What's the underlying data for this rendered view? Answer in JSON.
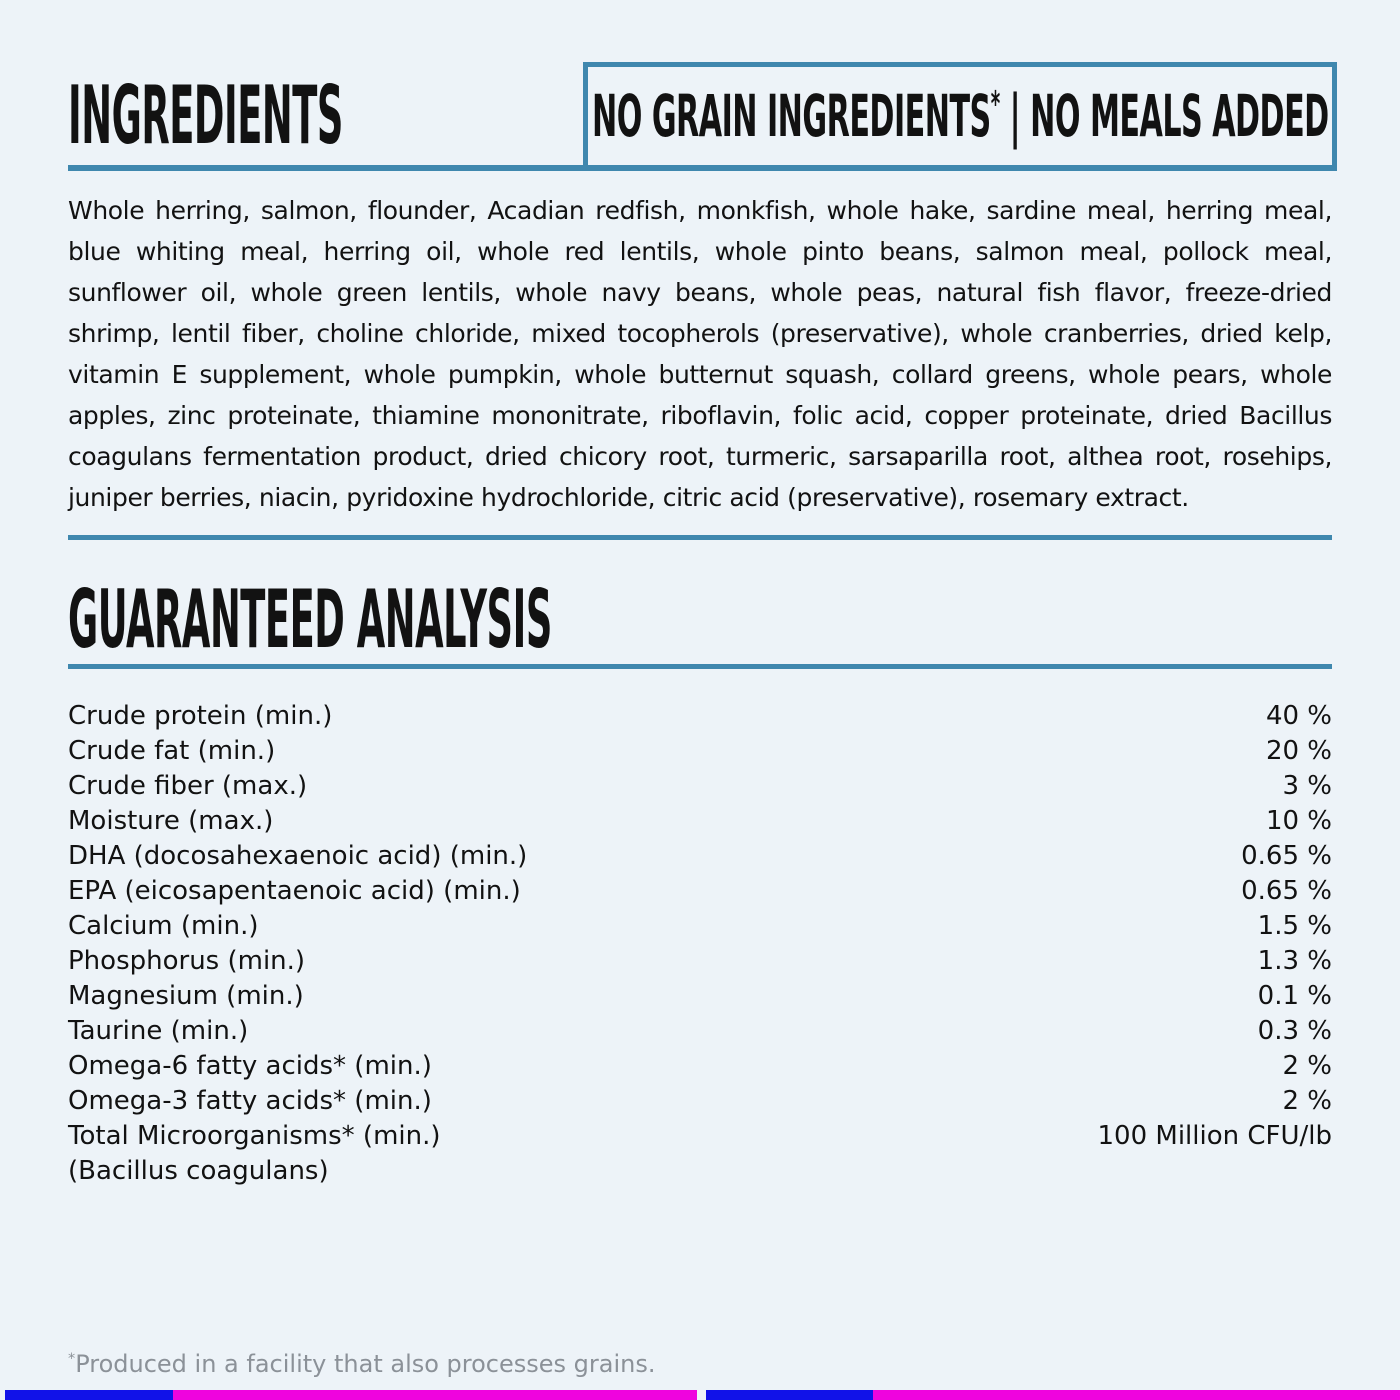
{
  "colors": {
    "background": "#edf3f8",
    "accent": "#3f87ae",
    "text": "#121212",
    "footnote": "#8b9198",
    "bar_blue": "#1112e8",
    "bar_magenta": "#ef04de"
  },
  "ingredients": {
    "heading": "INGREDIENTS",
    "badge": {
      "text_left": "NO GRAIN INGREDIENTS",
      "asterisk": "*",
      "separator": " | ",
      "text_right": "NO MEALS ADDED"
    },
    "text": "Whole herring, salmon, flounder, Acadian redfish, monkfish, whole hake, sardine meal, herring meal, blue whiting meal, herring oil, whole red lentils, whole pinto beans, salmon meal, pollock meal, sunflower oil, whole green lentils, whole navy beans, whole peas, natural fish flavor, freeze-dried shrimp, lentil fiber, choline chloride, mixed tocopherols (preservative), whole cranberries, dried kelp, vitamin E supplement, whole pumpkin, whole butternut squash, collard greens, whole pears, whole apples, zinc proteinate, thiamine mononitrate, riboflavin, folic acid, copper proteinate, dried Bacillus coagulans fermentation product, dried chicory root, turmeric, sarsaparilla root, althea root, rosehips, juniper berries, niacin, pyridoxine hydrochloride, citric acid (preservative), rosemary extract."
  },
  "analysis": {
    "heading": "GUARANTEED ANALYSIS",
    "rows": [
      {
        "label": "Crude protein (min.)",
        "value": "40 %"
      },
      {
        "label": "Crude fat (min.)",
        "value": "20 %"
      },
      {
        "label": "Crude fiber (max.)",
        "value": "3 %"
      },
      {
        "label": "Moisture (max.)",
        "value": "10 %"
      },
      {
        "label": "DHA (docosahexaenoic acid) (min.)",
        "value": "0.65 %"
      },
      {
        "label": "EPA (eicosapentaenoic acid) (min.)",
        "value": "0.65 %"
      },
      {
        "label": "Calcium (min.)",
        "value": "1.5 %"
      },
      {
        "label": "Phosphorus (min.)",
        "value": "1.3 %"
      },
      {
        "label": "Magnesium (min.)",
        "value": "0.1 %"
      },
      {
        "label": "Taurine (min.)",
        "value": "0.3 %"
      },
      {
        "label": "Omega-6 fatty acids* (min.)",
        "value": "2 %"
      },
      {
        "label": "Omega-3 fatty acids* (min.)",
        "value": "2 %"
      },
      {
        "label": "Total Microorganisms* (min.)",
        "value": "100 Million CFU/lb"
      },
      {
        "label": "(Bacillus coagulans)",
        "value": ""
      }
    ]
  },
  "footnote": {
    "asterisk": "*",
    "text": "Produced in a facility that also processes grains."
  }
}
